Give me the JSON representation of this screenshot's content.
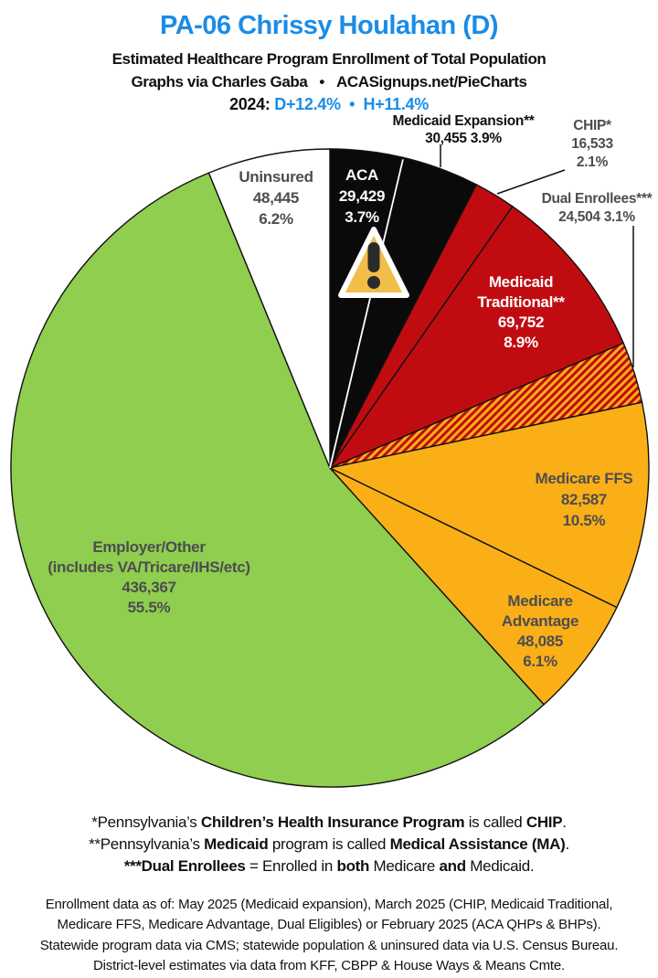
{
  "header": {
    "title": "PA-06 Chrissy Houlahan (D)",
    "subtitle1": "Estimated Healthcare Program Enrollment of Total Population",
    "subtitle2": "Graphs via Charles Gaba   •   ACASignups.net/PieCharts",
    "lean_line": [
      {
        "t": "2024: "
      },
      {
        "t": "D+12.4%",
        "cls": "blue"
      },
      {
        "t": "  •  ",
        "cls": "blue"
      },
      {
        "t": "H+11.4%",
        "cls": "blue"
      }
    ]
  },
  "colors": {
    "blue": "#1B8CE6",
    "red": "#C00C10",
    "gold": "#FBAF17",
    "green": "#8FCE4F",
    "black_slice": "#0A0A0A",
    "white_slice": "#FFFFFF",
    "gray_text": "#4D4D4F",
    "warning_fill": "#F2BE4A",
    "warning_mark": "#2B2B2B"
  },
  "icons": {
    "aca_warning": "warning-triangle-exclamation"
  },
  "chart_data": {
    "type": "pie",
    "title": "Estimated Healthcare Program Enrollment of Total Population",
    "start_angle_deg": 0,
    "direction": "clockwise",
    "total_pct": 100.0,
    "slices": [
      {
        "name": "ACA",
        "value": 29429,
        "value_display": "29,429",
        "pct": 3.7,
        "pct_display": "3.7%",
        "color": "#0A0A0A",
        "divider_after_color": "#FFFFFF"
      },
      {
        "name": "Medicaid Expansion**",
        "value": 30455,
        "value_display": "30,455",
        "pct": 3.9,
        "pct_display": "3.9%",
        "color": "#0A0A0A"
      },
      {
        "name": "CHIP*",
        "value": 16533,
        "value_display": "16,533",
        "pct": 2.1,
        "pct_display": "2.1%",
        "color": "#C00C10"
      },
      {
        "name": "Medicaid Traditional**",
        "value": 69752,
        "value_display": "69,752",
        "pct": 8.9,
        "pct_display": "8.9%",
        "color": "#C00C10"
      },
      {
        "name": "Dual Enrollees***",
        "value": 24504,
        "value_display": "24,504",
        "pct": 3.1,
        "pct_display": "3.1%",
        "color": "#C00C10",
        "hatch": true,
        "hatch_colors": [
          "#C00C10",
          "#FBAF17"
        ]
      },
      {
        "name": "Medicare FFS",
        "value": 82587,
        "value_display": "82,587",
        "pct": 10.5,
        "pct_display": "10.5%",
        "color": "#FBAF17"
      },
      {
        "name": "Medicare Advantage",
        "value": 48085,
        "value_display": "48,085",
        "pct": 6.1,
        "pct_display": "6.1%",
        "color": "#FBAF17"
      },
      {
        "name": "Employer/Other (includes VA/Tricare/IHS/etc)",
        "value": 436367,
        "value_display": "436,367",
        "pct": 55.5,
        "pct_display": "55.5%",
        "color": "#8FCE4F"
      },
      {
        "name": "Uninsured",
        "value": 48445,
        "value_display": "48,445",
        "pct": 6.2,
        "pct_display": "6.2%",
        "color": "#FFFFFF"
      }
    ]
  },
  "labels": {
    "uninsured": {
      "lines": [
        "Uninsured",
        "48,445",
        "6.2%"
      ]
    },
    "aca": {
      "lines": [
        "ACA",
        "29,429",
        "3.7%"
      ]
    },
    "medicaid_expansion": {
      "lines": [
        "Medicaid Expansion**",
        "30,455 3.9%"
      ]
    },
    "chip": {
      "lines": [
        "CHIP*",
        "16,533",
        "2.1%"
      ]
    },
    "dual_enrollees": {
      "lines": [
        "Dual Enrollees***",
        "24,504 3.1%"
      ]
    },
    "medicaid_traditional": {
      "lines": [
        "Medicaid",
        "Traditional**",
        "69,752",
        "8.9%"
      ]
    },
    "medicare_ffs": {
      "lines": [
        "Medicare FFS",
        "82,587",
        "10.5%"
      ]
    },
    "medicare_advantage": {
      "lines": [
        "Medicare",
        "Advantage",
        "48,085",
        "6.1%"
      ]
    },
    "employer": {
      "lines": [
        "Employer/Other",
        "(includes VA/Tricare/IHS/etc)",
        "436,367",
        "55.5%"
      ]
    }
  },
  "footnotes": {
    "l1": [
      {
        "t": "*Pennsylvania’s "
      },
      {
        "t": "Children’s Health Insurance Program",
        "cls": "b"
      },
      {
        "t": " is called "
      },
      {
        "t": "CHIP",
        "cls": "b"
      },
      {
        "t": "."
      }
    ],
    "l2": [
      {
        "t": "**Pennsylvania’s "
      },
      {
        "t": "Medicaid",
        "cls": "b"
      },
      {
        "t": " program is called "
      },
      {
        "t": "Medical Assistance (MA)",
        "cls": "b"
      },
      {
        "t": "."
      }
    ],
    "l3": [
      {
        "t": "***Dual Enrollees",
        "cls": "b"
      },
      {
        "t": " = Enrolled in "
      },
      {
        "t": "both",
        "cls": "b"
      },
      {
        "t": " Medicare "
      },
      {
        "t": "and",
        "cls": "b"
      },
      {
        "t": " Medicaid."
      }
    ],
    "data_lines": [
      "Enrollment data as of: May 2025 (Medicaid expansion), March 2025 (CHIP, Medicaid Traditional,",
      "Medicare FFS, Medicare Advantage, Dual Eligibles) or February 2025 (ACA QHPs & BHPs).",
      "Statewide program data via CMS; statewide population & uninsured data via U.S. Census Bureau.",
      "District-level estimates via data from KFF, CBPP & House Ways & Means Cmte."
    ]
  }
}
